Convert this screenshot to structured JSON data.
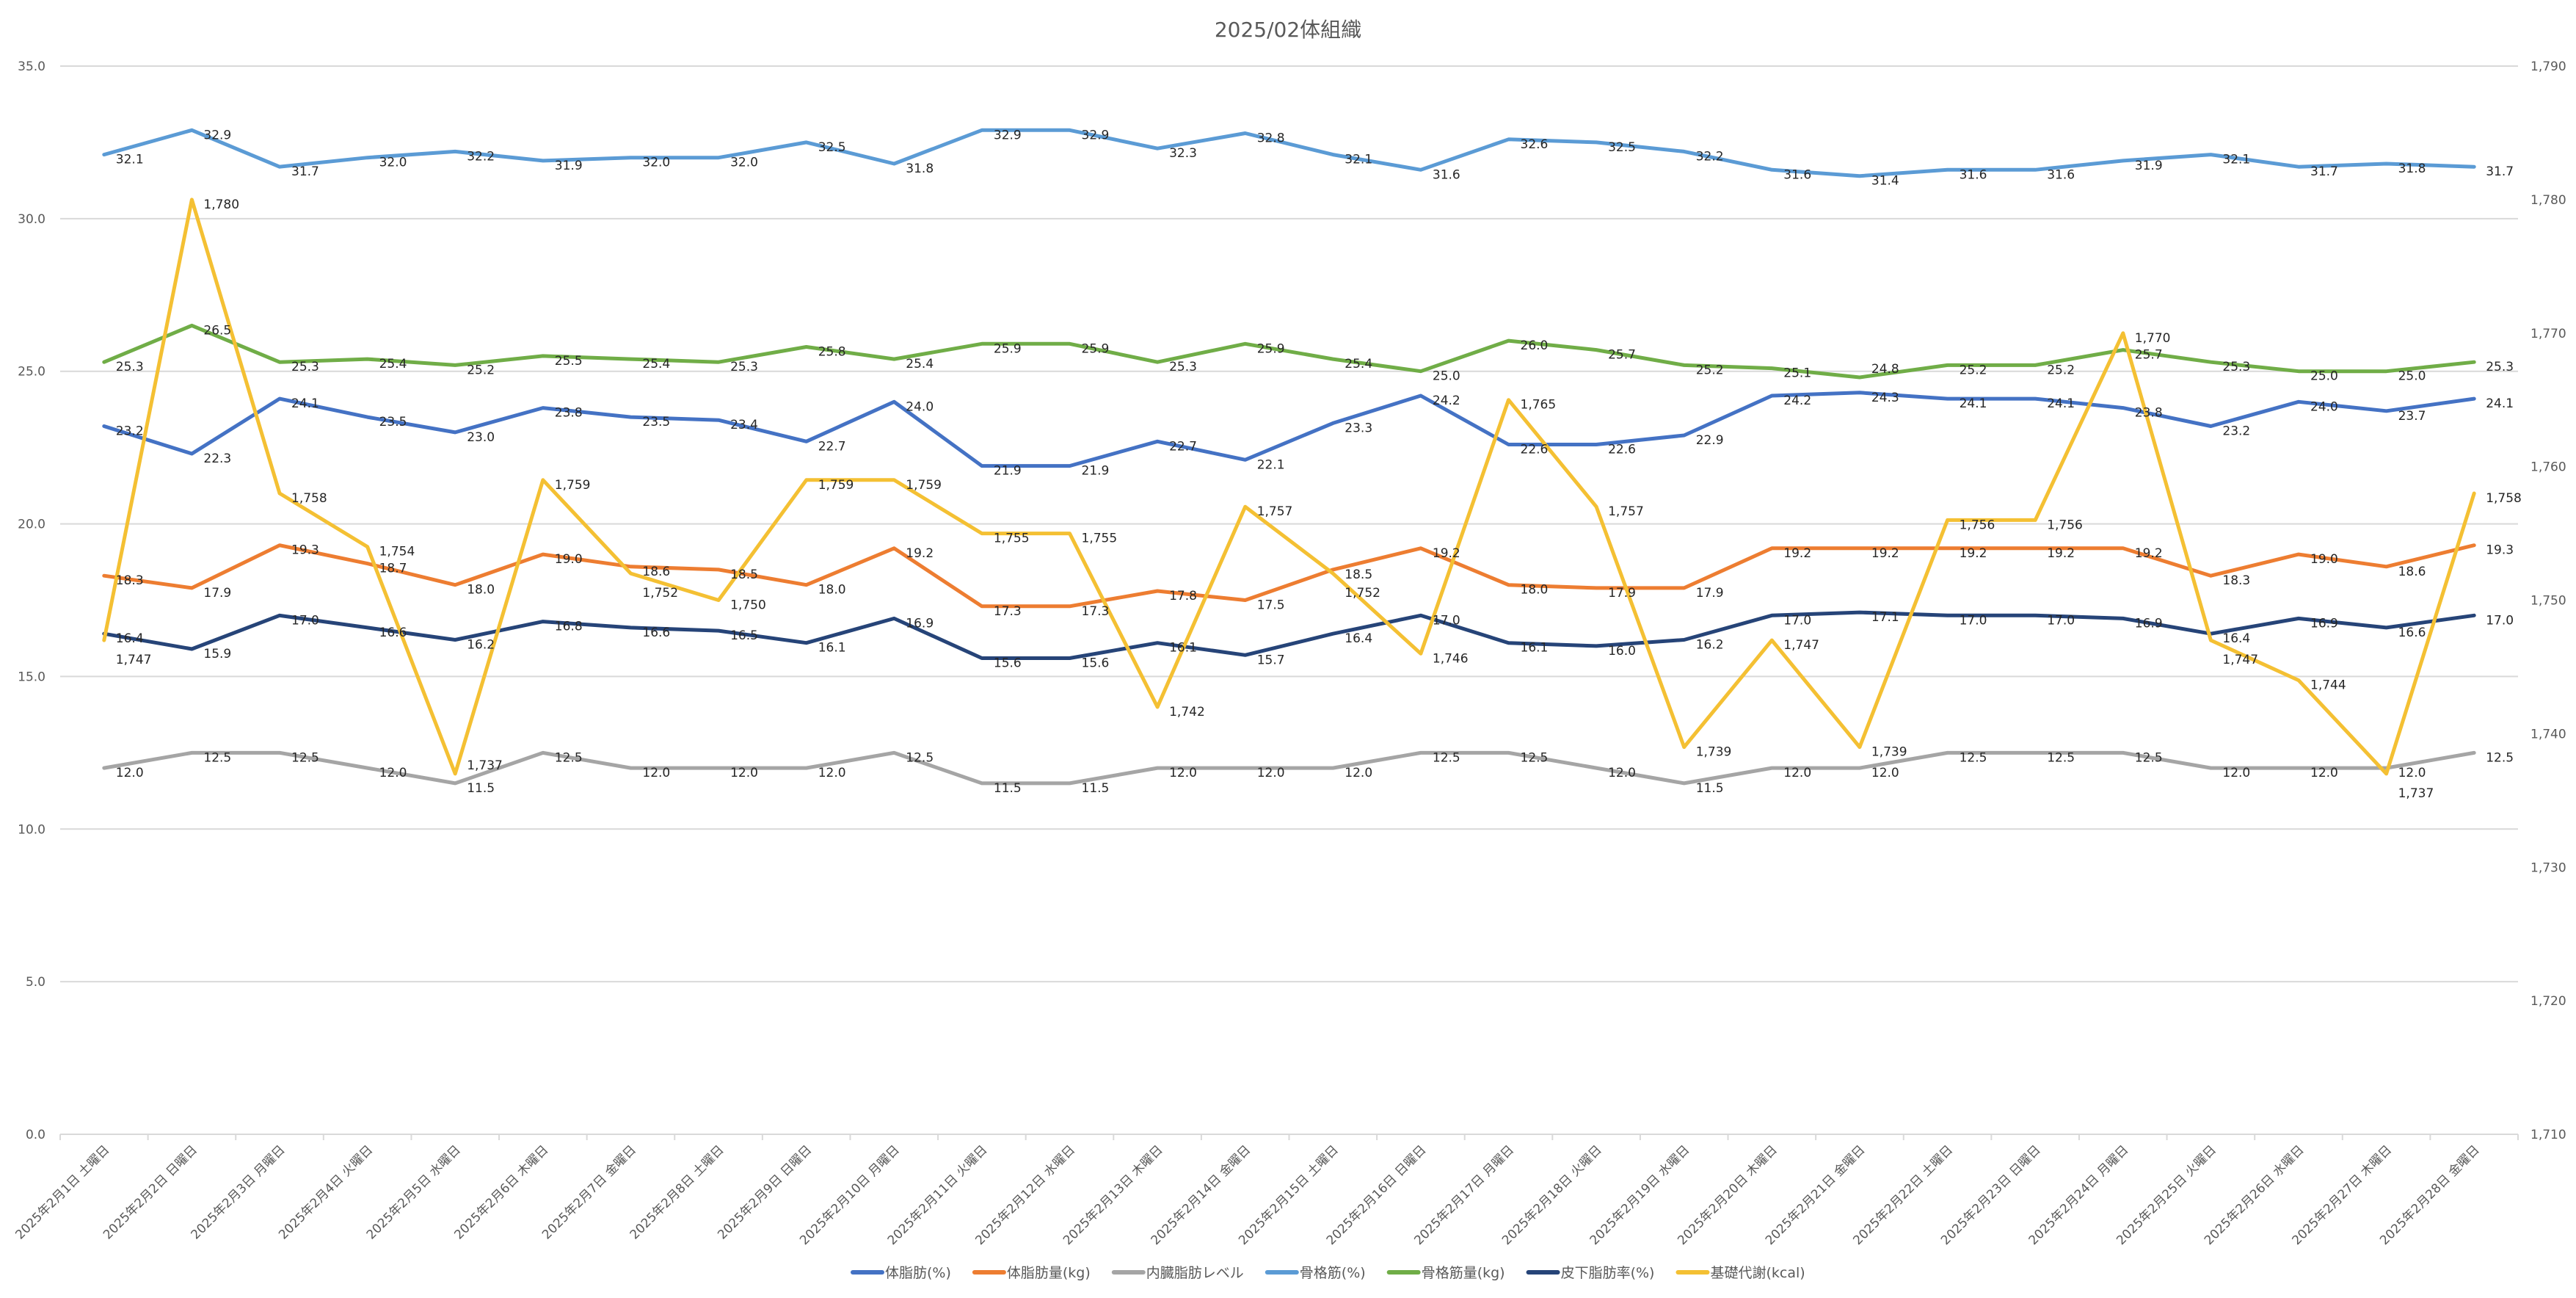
{
  "chart_data": {
    "type": "line",
    "title": "2025/02体組織",
    "legend_position": "bottom",
    "grid": true,
    "y_left": {
      "min": 0,
      "max": 35,
      "step": 5,
      "decimals": 1
    },
    "y_right": {
      "min": 1710,
      "max": 1790,
      "step": 10
    },
    "categories": [
      "2025年2月1日 土曜日",
      "2025年2月2日 日曜日",
      "2025年2月3日 月曜日",
      "2025年2月4日 火曜日",
      "2025年2月5日 水曜日",
      "2025年2月6日 木曜日",
      "2025年2月7日 金曜日",
      "2025年2月8日 土曜日",
      "2025年2月9日 日曜日",
      "2025年2月10日 月曜日",
      "2025年2月11日 火曜日",
      "2025年2月12日 水曜日",
      "2025年2月13日 木曜日",
      "2025年2月14日 金曜日",
      "2025年2月15日 土曜日",
      "2025年2月16日 日曜日",
      "2025年2月17日 月曜日",
      "2025年2月18日 火曜日",
      "2025年2月19日 水曜日",
      "2025年2月20日 木曜日",
      "2025年2月21日 金曜日",
      "2025年2月22日 土曜日",
      "2025年2月23日 日曜日",
      "2025年2月24日 月曜日",
      "2025年2月25日 火曜日",
      "2025年2月26日 水曜日",
      "2025年2月27日 木曜日",
      "2025年2月28日 金曜日"
    ],
    "series": [
      {
        "name": "体脂肪(%)",
        "color": "#4472C4",
        "axis": "left",
        "values": [
          23.2,
          22.3,
          24.1,
          23.5,
          23.0,
          23.8,
          23.5,
          23.4,
          22.7,
          24.0,
          21.9,
          21.9,
          22.7,
          22.1,
          23.3,
          24.2,
          22.6,
          22.6,
          22.9,
          24.2,
          24.3,
          24.1,
          24.1,
          23.8,
          23.2,
          24.0,
          23.7,
          24.1
        ]
      },
      {
        "name": "体脂肪量(kg)",
        "color": "#ED7D31",
        "axis": "left",
        "values": [
          18.3,
          17.9,
          19.3,
          18.7,
          18.0,
          19.0,
          18.6,
          18.5,
          18.0,
          19.2,
          17.3,
          17.3,
          17.8,
          17.5,
          18.5,
          19.2,
          18.0,
          17.9,
          17.9,
          19.2,
          19.2,
          19.2,
          19.2,
          19.2,
          18.3,
          19.0,
          18.6,
          19.3
        ]
      },
      {
        "name": "内臓脂肪レベル",
        "color": "#A5A5A5",
        "axis": "left",
        "values": [
          12.0,
          12.5,
          12.5,
          12.0,
          11.5,
          12.5,
          12.0,
          12.0,
          12.0,
          12.5,
          11.5,
          11.5,
          12.0,
          12.0,
          12.0,
          12.5,
          12.5,
          12.0,
          11.5,
          12.0,
          12.0,
          12.5,
          12.5,
          12.5,
          12.0,
          12.0,
          12.0,
          12.5
        ]
      },
      {
        "name": "骨格筋(%)",
        "color": "#5B9BD5",
        "axis": "left",
        "values": [
          32.1,
          32.9,
          31.7,
          32.0,
          32.2,
          31.9,
          32.0,
          32.0,
          32.5,
          31.8,
          32.9,
          32.9,
          32.3,
          32.8,
          32.1,
          31.6,
          32.6,
          32.5,
          32.2,
          31.6,
          31.4,
          31.6,
          31.6,
          31.9,
          32.1,
          31.7,
          31.8,
          31.7
        ]
      },
      {
        "name": "骨格筋量(kg)",
        "color": "#70AD47",
        "axis": "left",
        "values": [
          25.3,
          26.5,
          25.3,
          25.4,
          25.2,
          25.5,
          25.4,
          25.3,
          25.8,
          25.4,
          25.9,
          25.9,
          25.3,
          25.9,
          25.4,
          25.0,
          26.0,
          25.7,
          25.2,
          25.1,
          24.8,
          25.2,
          25.2,
          25.7,
          25.3,
          25.0,
          25.0,
          25.3
        ]
      },
      {
        "name": "皮下脂肪率(%)",
        "color": "#264478",
        "axis": "left",
        "values": [
          16.4,
          15.9,
          17.0,
          16.6,
          16.2,
          16.8,
          16.6,
          16.5,
          16.1,
          16.9,
          15.6,
          15.6,
          16.1,
          15.7,
          16.4,
          17.0,
          16.1,
          16.0,
          16.2,
          17.0,
          17.1,
          17.0,
          17.0,
          16.9,
          16.4,
          16.9,
          16.6,
          17.0
        ]
      },
      {
        "name": "基礎代謝(kcal)",
        "color": "#F4C033",
        "axis": "right",
        "values": [
          1747,
          1780,
          1758,
          1754,
          1737,
          1759,
          1752,
          1750,
          1759,
          1759,
          1755,
          1755,
          1742,
          1757,
          1752,
          1746,
          1765,
          1757,
          1739,
          1747,
          1739,
          1756,
          1756,
          1770,
          1747,
          1744,
          1737,
          1758
        ]
      }
    ]
  }
}
